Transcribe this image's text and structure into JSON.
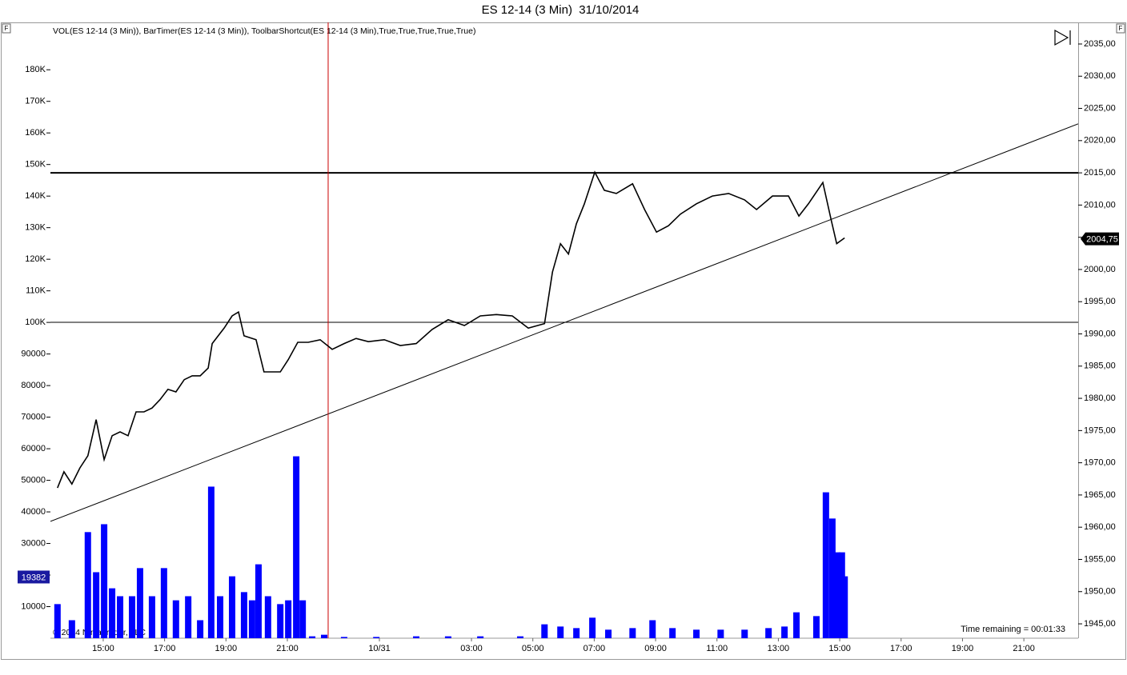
{
  "title": "ES 12-14 (3 Min)  31/10/2014",
  "indicator_label": "VOL(ES 12-14 (3 Min)), BarTimer(ES 12-14 (3 Min)), ToolbarShortcut(ES 12-14 (3 Min),True,True,True,True,True)",
  "corner_markers": [
    "F",
    "F"
  ],
  "time_remaining": "Time remaining = 00:01:33",
  "copyright": "© 2014 NinjaTrader, LLC",
  "chart_data": [
    {
      "type": "line",
      "y_axis": "right",
      "color": "#000000",
      "xlim": [
        13.28,
        46.77
      ],
      "xticks": [
        {
          "value": 15,
          "label": "15:00"
        },
        {
          "value": 17,
          "label": "17:00"
        },
        {
          "value": 19,
          "label": "19:00"
        },
        {
          "value": 21,
          "label": "21:00"
        },
        {
          "value": 24,
          "label": "10/31"
        },
        {
          "value": 27,
          "label": "03:00"
        },
        {
          "value": 29,
          "label": "05:00"
        },
        {
          "value": 31,
          "label": "07:00"
        },
        {
          "value": 33,
          "label": "09:00"
        },
        {
          "value": 35,
          "label": "11:00"
        },
        {
          "value": 37,
          "label": "13:00"
        },
        {
          "value": 39,
          "label": "15:00"
        },
        {
          "value": 41,
          "label": "17:00"
        },
        {
          "value": 43,
          "label": "19:00"
        },
        {
          "value": 45,
          "label": "21:00"
        }
      ],
      "ylim": [
        1942.77,
        2038.35
      ],
      "yticks": [
        {
          "value": 1945,
          "label": "1945,00"
        },
        {
          "value": 1950,
          "label": "1950,00"
        },
        {
          "value": 1955,
          "label": "1955,00"
        },
        {
          "value": 1960,
          "label": "1960,00"
        },
        {
          "value": 1965,
          "label": "1965,00"
        },
        {
          "value": 1970,
          "label": "1970,00"
        },
        {
          "value": 1975,
          "label": "1975,00"
        },
        {
          "value": 1980,
          "label": "1980,00"
        },
        {
          "value": 1985,
          "label": "1985,00"
        },
        {
          "value": 1990,
          "label": "1990,00"
        },
        {
          "value": 1995,
          "label": "1995,00"
        },
        {
          "value": 2000,
          "label": "2000,00"
        },
        {
          "value": 2005,
          "label": "2005,00"
        },
        {
          "value": 2010,
          "label": "2010,00"
        },
        {
          "value": 2015,
          "label": "2015,00"
        },
        {
          "value": 2020,
          "label": "2020,00"
        },
        {
          "value": 2025,
          "label": "2025,00"
        },
        {
          "value": 2030,
          "label": "2030,00"
        },
        {
          "value": 2035,
          "label": "2035,00"
        }
      ],
      "x": [
        13.51,
        13.72,
        13.98,
        14.24,
        14.5,
        14.77,
        15.03,
        15.29,
        15.55,
        15.81,
        16.07,
        16.33,
        16.59,
        16.85,
        17.11,
        17.37,
        17.64,
        17.9,
        18.16,
        18.42,
        18.55,
        18.94,
        19.2,
        19.41,
        19.59,
        19.98,
        20.24,
        20.5,
        20.77,
        21.03,
        21.34,
        21.68,
        22.07,
        22.46,
        22.85,
        23.24,
        23.64,
        24.16,
        24.68,
        25.2,
        25.72,
        26.24,
        26.77,
        27.29,
        27.81,
        28.33,
        28.85,
        29.38,
        29.64,
        29.9,
        30.16,
        30.42,
        30.68,
        31.02,
        31.33,
        31.72,
        32.25,
        32.64,
        33.03,
        33.42,
        33.81,
        34.33,
        34.85,
        35.38,
        35.9,
        36.29,
        36.81,
        37.33,
        37.67,
        37.98,
        38.45,
        38.72,
        38.9,
        39.16
      ],
      "values": [
        1966.1,
        1968.6,
        1966.7,
        1969.2,
        1971.1,
        1976.7,
        1970.5,
        1974.2,
        1974.8,
        1974.2,
        1977.9,
        1977.9,
        1978.5,
        1979.8,
        1981.4,
        1981.0,
        1982.9,
        1983.5,
        1983.5,
        1984.7,
        1988.5,
        1990.9,
        1992.8,
        1993.4,
        1989.7,
        1989.1,
        1984.1,
        1984.1,
        1984.1,
        1986.0,
        1988.7,
        1988.7,
        1989.1,
        1987.6,
        1988.5,
        1989.3,
        1988.8,
        1989.1,
        1988.2,
        1988.5,
        1990.7,
        1992.2,
        1991.3,
        1992.8,
        1993.0,
        1992.8,
        1990.9,
        1991.6,
        1999.6,
        2004.0,
        2002.4,
        2007.1,
        2010.2,
        2015.1,
        2012.3,
        2011.8,
        2013.3,
        2009.3,
        2005.8,
        2006.8,
        2008.6,
        2010.2,
        2011.4,
        2011.8,
        2010.8,
        2009.3,
        2011.4,
        2011.4,
        2008.3,
        2010.2,
        2013.5,
        2007.7,
        2004.0,
        2004.9
      ],
      "last_price": {
        "value": 2004.75,
        "label": "2004,75"
      },
      "hlines": [
        2015.0,
        1991.8
      ],
      "trendline": {
        "x": [
          13.28,
          46.77
        ],
        "values": [
          1960.9,
          2022.6
        ]
      },
      "vline": 22.33,
      "vline_color": "#cc0000"
    },
    {
      "type": "bar",
      "y_axis": "left",
      "color": "#0000ff",
      "ylim": [
        0,
        195000
      ],
      "yticks": [
        10000,
        20000,
        30000,
        40000,
        50000,
        60000,
        70000,
        80000,
        90000,
        {
          "value": 100000,
          "label": "100K"
        },
        {
          "value": 110000,
          "label": "110K"
        },
        {
          "value": 120000,
          "label": "120K"
        },
        {
          "value": 130000,
          "label": "130K"
        },
        {
          "value": 140000,
          "label": "140K"
        },
        {
          "value": 150000,
          "label": "150K"
        },
        {
          "value": 160000,
          "label": "160K"
        },
        {
          "value": 170000,
          "label": "170K"
        },
        {
          "value": 180000,
          "label": "180K"
        }
      ],
      "x": [
        13.51,
        13.98,
        14.5,
        14.77,
        15.03,
        15.29,
        15.55,
        15.94,
        16.2,
        16.59,
        16.98,
        17.37,
        17.77,
        18.16,
        18.52,
        18.81,
        19.2,
        19.59,
        19.85,
        20.06,
        20.37,
        20.77,
        21.03,
        21.29,
        21.5,
        21.81,
        22.2,
        22.85,
        23.9,
        25.2,
        26.24,
        27.29,
        28.59,
        29.38,
        29.9,
        30.42,
        30.94,
        31.46,
        32.25,
        32.9,
        33.55,
        34.33,
        35.12,
        35.9,
        36.68,
        37.2,
        37.59,
        38.24,
        38.55,
        38.76,
        38.92,
        39.07,
        39.16
      ],
      "values": [
        10800,
        5700,
        33600,
        20900,
        36100,
        15800,
        13300,
        13300,
        22200,
        13300,
        22200,
        12000,
        13300,
        5700,
        48000,
        13300,
        19600,
        14600,
        12000,
        23400,
        13300,
        10800,
        12000,
        57600,
        12000,
        600,
        1100,
        400,
        400,
        600,
        600,
        600,
        600,
        4400,
        3700,
        3200,
        6500,
        2700,
        3200,
        5700,
        3200,
        2700,
        2700,
        2700,
        3200,
        3700,
        8200,
        7000,
        46200,
        37900,
        27200,
        27200,
        19600
      ],
      "last_value": 19382
    }
  ]
}
